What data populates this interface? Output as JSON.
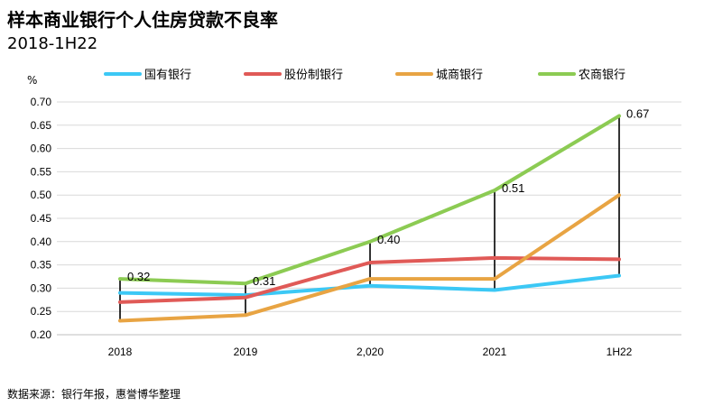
{
  "header": {
    "title": "样本商业银行个人住房贷款不良率",
    "subtitle": "2018-1H22"
  },
  "footer": {
    "source": "数据来源：银行年报，惠誉博华整理"
  },
  "chart_data": {
    "type": "line",
    "title": "样本商业银行个人住房贷款不良率",
    "subtitle": "2018-1H22",
    "ylabel": "%",
    "xlabel": "",
    "categories": [
      "2018",
      "2019",
      "2,020",
      "2021",
      "1H22"
    ],
    "ylim": [
      0.2,
      0.7
    ],
    "yticks": [
      "0.20",
      "0.25",
      "0.30",
      "0.35",
      "0.40",
      "0.45",
      "0.50",
      "0.55",
      "0.60",
      "0.65",
      "0.70"
    ],
    "grid": true,
    "legend": "top",
    "series": [
      {
        "name": "国有银行",
        "color": "#3cc8f5",
        "values": [
          0.29,
          0.285,
          0.305,
          0.296,
          0.327
        ]
      },
      {
        "name": "股份制银行",
        "color": "#e05a57",
        "values": [
          0.27,
          0.28,
          0.355,
          0.365,
          0.362
        ]
      },
      {
        "name": "城商银行",
        "color": "#e8a443",
        "values": [
          0.23,
          0.242,
          0.32,
          0.32,
          0.5
        ]
      },
      {
        "name": "农商银行",
        "color": "#8ccb53",
        "values": [
          0.32,
          0.31,
          0.4,
          0.51,
          0.67
        ],
        "labels": [
          "0.32",
          "0.31",
          "0.40",
          "0.51",
          "0.67"
        ]
      }
    ]
  }
}
